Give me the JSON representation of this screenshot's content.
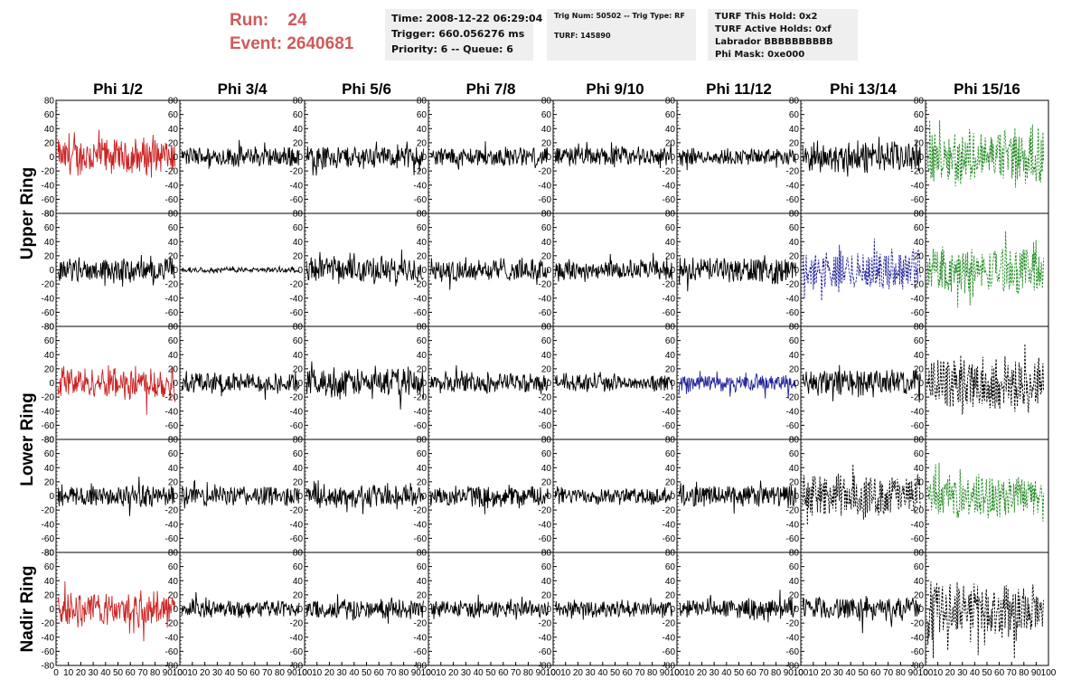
{
  "header": {
    "run_label": "Run:",
    "run_value": "24",
    "event_label": "Event:",
    "event_value": "2640681"
  },
  "info": {
    "time": "Time: 2008-12-22 06:29:04",
    "trigger": "Trigger: 660.056276 ms",
    "priority": "Priority: 6 -- Queue: 6",
    "trig_num": "Trig Num: 50502 -- Trig Type: RF",
    "turf": "TURF: 145890",
    "turf_this_hold": "TURF This Hold: 0x2",
    "turf_active_holds": "TURF Active Holds: 0xf",
    "labrador": "Labrador BBBBBBBBBB",
    "phi_mask": "Phi Mask: 0xe000"
  },
  "colors": {
    "red": "#cc2222",
    "black": "#000000",
    "blue": "#22229a",
    "green": "#228b22",
    "title_red": "#d05a5a"
  },
  "chart_data": {
    "type": "line",
    "columns": [
      "Phi 1/2",
      "Phi 3/4",
      "Phi 5/6",
      "Phi 7/8",
      "Phi 9/10",
      "Phi 11/12",
      "Phi 13/14",
      "Phi 15/16"
    ],
    "row_labels": [
      "Upper Ring",
      "Lower Ring",
      "Nadir Ring"
    ],
    "xlim": [
      0,
      100
    ],
    "ylim": [
      -80,
      80
    ],
    "x_ticks": [
      0,
      10,
      20,
      30,
      40,
      50,
      60,
      70,
      80,
      90,
      100
    ],
    "y_ticks": [
      80,
      60,
      40,
      20,
      0,
      -20,
      -40,
      -60,
      -80
    ],
    "x_tick_labels": [
      "0",
      "10",
      "20",
      "30",
      "40",
      "50",
      "60",
      "70",
      "80",
      "90",
      "100"
    ],
    "y_tick_labels": [
      "80",
      "60",
      "40",
      "20",
      "0",
      "-20",
      "-40",
      "-60",
      "-80"
    ],
    "panels": [
      [
        {
          "color": "red",
          "style": "solid",
          "amp": 22
        },
        {
          "color": "black",
          "style": "solid",
          "amp": 12
        },
        {
          "color": "black",
          "style": "solid",
          "amp": 14
        },
        {
          "color": "black",
          "style": "solid",
          "amp": 12
        },
        {
          "color": "black",
          "style": "solid",
          "amp": 12
        },
        {
          "color": "black",
          "style": "solid",
          "amp": 10
        },
        {
          "color": "black",
          "style": "solid",
          "amp": 18
        },
        {
          "color": "green",
          "style": "dashed",
          "amp": 32
        }
      ],
      [
        {
          "color": "black",
          "style": "solid",
          "amp": 14
        },
        {
          "color": "black",
          "style": "solid",
          "amp": 3
        },
        {
          "color": "black",
          "style": "solid",
          "amp": 16
        },
        {
          "color": "black",
          "style": "solid",
          "amp": 14
        },
        {
          "color": "black",
          "style": "solid",
          "amp": 13
        },
        {
          "color": "black",
          "style": "solid",
          "amp": 15
        },
        {
          "color": "blue",
          "style": "dashed",
          "amp": 24
        },
        {
          "color": "green",
          "style": "dashed",
          "amp": 30
        }
      ],
      [
        {
          "color": "red",
          "style": "solid",
          "amp": 20
        },
        {
          "color": "black",
          "style": "solid",
          "amp": 12
        },
        {
          "color": "black",
          "style": "solid",
          "amp": 18
        },
        {
          "color": "black",
          "style": "solid",
          "amp": 12
        },
        {
          "color": "black",
          "style": "solid",
          "amp": 10
        },
        {
          "color": "blue",
          "style": "solid",
          "amp": 10
        },
        {
          "color": "black",
          "style": "solid",
          "amp": 16
        },
        {
          "color": "black",
          "style": "dashed",
          "amp": 32
        }
      ],
      [
        {
          "color": "black",
          "style": "solid",
          "amp": 14
        },
        {
          "color": "black",
          "style": "solid",
          "amp": 13
        },
        {
          "color": "black",
          "style": "solid",
          "amp": 14
        },
        {
          "color": "black",
          "style": "solid",
          "amp": 13
        },
        {
          "color": "black",
          "style": "solid",
          "amp": 10
        },
        {
          "color": "black",
          "style": "solid",
          "amp": 14
        },
        {
          "color": "black",
          "style": "dashed",
          "amp": 26
        },
        {
          "color": "green",
          "style": "dashed",
          "amp": 26
        }
      ],
      [
        {
          "color": "red",
          "style": "solid",
          "amp": 20
        },
        {
          "color": "black",
          "style": "solid",
          "amp": 11
        },
        {
          "color": "black",
          "style": "solid",
          "amp": 12
        },
        {
          "color": "black",
          "style": "solid",
          "amp": 11
        },
        {
          "color": "black",
          "style": "solid",
          "amp": 10
        },
        {
          "color": "black",
          "style": "solid",
          "amp": 12
        },
        {
          "color": "black",
          "style": "solid",
          "amp": 14
        },
        {
          "color": "black",
          "style": "dashed",
          "amp": 32
        }
      ]
    ]
  }
}
